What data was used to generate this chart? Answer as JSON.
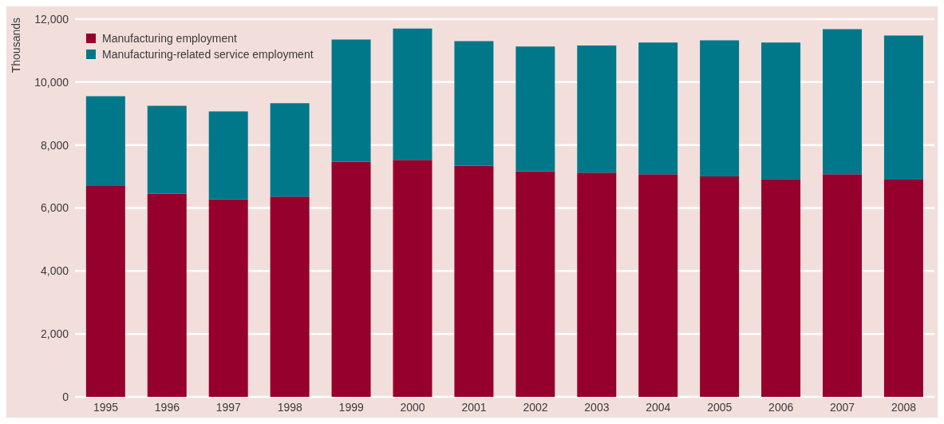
{
  "chart_data": {
    "type": "bar",
    "stacked": true,
    "ylabel": "Thousands",
    "categories": [
      "1995",
      "1996",
      "1997",
      "1998",
      "1999",
      "2000",
      "2001",
      "2002",
      "2003",
      "2004",
      "2005",
      "2006",
      "2007",
      "2008"
    ],
    "series": [
      {
        "name": "Manufacturing employment",
        "color": "#96002c",
        "values": [
          6700,
          6450,
          6280,
          6360,
          7470,
          7530,
          7340,
          7170,
          7120,
          7070,
          7000,
          6920,
          7070,
          6900
        ]
      },
      {
        "name": "Manufacturing-related service employment",
        "color": "#00788a",
        "values": [
          2850,
          2800,
          2790,
          2970,
          3880,
          4170,
          3960,
          3960,
          4040,
          4190,
          4330,
          4340,
          4610,
          4580
        ]
      }
    ],
    "ylim": [
      0,
      12000
    ],
    "yticks": [
      0,
      {
        "value": 2000,
        "label": "2,000"
      },
      {
        "value": 4000,
        "label": "4,000"
      },
      {
        "value": 6000,
        "label": "6,000"
      },
      {
        "value": 8000,
        "label": "8,000"
      },
      {
        "value": 10000,
        "label": "10,000"
      },
      {
        "value": 12000,
        "label": "12,000"
      }
    ],
    "grid": "y",
    "legend": "top left"
  }
}
